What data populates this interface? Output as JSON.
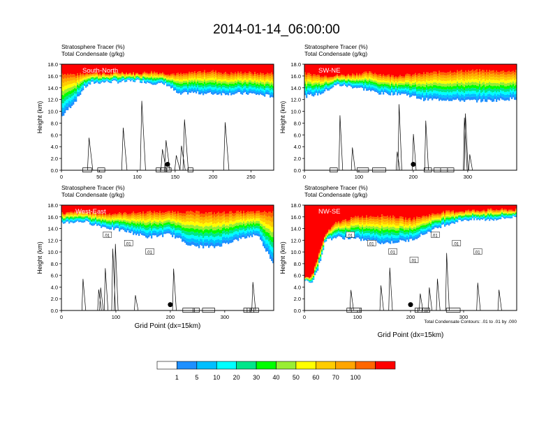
{
  "title": "2014-01-14_06:00:00",
  "field_labels": [
    "Stratosphere Tracer   (%)",
    "Total Condensate   (g/kg)"
  ],
  "ylabel": "Height (km)",
  "xlabel": "Grid Point (dx=15km)",
  "contour_note": "Total Condensate Contours: .01 to .01 by .000",
  "contour_label": ".01",
  "colors": {
    "levels": [
      "#ffffff",
      "#1e90ff",
      "#00bfff",
      "#00ffff",
      "#00e68a",
      "#00ff00",
      "#99ee33",
      "#ffff00",
      "#ffcc00",
      "#ffa500",
      "#ff6600",
      "#ff0000"
    ],
    "contour": "#000000",
    "marker": "#000000"
  },
  "colorbar": {
    "labels": [
      "1",
      "5",
      "10",
      "20",
      "30",
      "40",
      "50",
      "60",
      "70",
      "100"
    ]
  },
  "chart_data": [
    {
      "type": "heatmap",
      "panel": "South-North",
      "xlim": [
        0,
        280
      ],
      "ylim": [
        0,
        18
      ],
      "xticks": [
        0,
        50,
        100,
        150,
        200,
        250
      ],
      "yticks": [
        "0.0",
        "2.0",
        "4.0",
        "6.0",
        "8.0",
        "10.0",
        "12.0",
        "14.0",
        "16.0",
        "18.0"
      ],
      "contour_labels": [],
      "marker": {
        "x": 140,
        "y": 1.0
      },
      "tracer_100_base_km": [
        [
          0,
          16.4
        ],
        [
          20,
          16.2
        ],
        [
          40,
          16.6
        ],
        [
          60,
          16.3
        ],
        [
          80,
          16.6
        ],
        [
          100,
          16.4
        ],
        [
          120,
          16.7
        ],
        [
          140,
          16.4
        ],
        [
          160,
          16.3
        ],
        [
          180,
          16.7
        ],
        [
          200,
          16.8
        ],
        [
          220,
          16.4
        ],
        [
          240,
          16.6
        ],
        [
          260,
          16.4
        ],
        [
          280,
          16.4
        ]
      ],
      "tracer_1_base_km": [
        [
          0,
          9.0
        ],
        [
          10,
          10.5
        ],
        [
          20,
          12.0
        ],
        [
          30,
          14.0
        ],
        [
          40,
          14.8
        ],
        [
          60,
          15.0
        ],
        [
          80,
          15.0
        ],
        [
          100,
          15.2
        ],
        [
          120,
          14.8
        ],
        [
          140,
          14.5
        ],
        [
          155,
          12.8
        ],
        [
          170,
          13.2
        ],
        [
          190,
          13.0
        ],
        [
          220,
          13.0
        ],
        [
          250,
          13.0
        ],
        [
          280,
          12.5
        ]
      ]
    },
    {
      "type": "heatmap",
      "panel": "SW-NE",
      "xlim": [
        0,
        390
      ],
      "ylim": [
        0,
        18
      ],
      "xticks": [
        0,
        100,
        200,
        300
      ],
      "yticks": [
        "0.0",
        "2.0",
        "4.0",
        "6.0",
        "8.0",
        "10.0",
        "12.0",
        "14.0",
        "16.0",
        "18.0"
      ],
      "contour_labels": [],
      "marker": {
        "x": 200,
        "y": 1.0
      },
      "tracer_100_base_km": [
        [
          0,
          16.4
        ],
        [
          40,
          16.0
        ],
        [
          80,
          16.2
        ],
        [
          120,
          16.6
        ],
        [
          160,
          16.0
        ],
        [
          200,
          16.2
        ],
        [
          240,
          16.6
        ],
        [
          280,
          16.8
        ],
        [
          320,
          16.9
        ],
        [
          360,
          16.8
        ],
        [
          390,
          16.8
        ]
      ],
      "tracer_1_base_km": [
        [
          0,
          12.5
        ],
        [
          30,
          13.0
        ],
        [
          60,
          14.5
        ],
        [
          100,
          14.0
        ],
        [
          140,
          13.0
        ],
        [
          180,
          13.0
        ],
        [
          220,
          12.0
        ],
        [
          260,
          12.0
        ],
        [
          300,
          11.8
        ],
        [
          340,
          11.8
        ],
        [
          390,
          12.2
        ]
      ]
    },
    {
      "type": "heatmap",
      "panel": "West-East",
      "xlim": [
        0,
        390
      ],
      "ylim": [
        0,
        18
      ],
      "xticks": [
        0,
        100,
        200,
        300
      ],
      "yticks": [
        "0.0",
        "2.0",
        "4.0",
        "6.0",
        "8.0",
        "10.0",
        "12.0",
        "14.0",
        "16.0",
        "18.0"
      ],
      "contour_labels": [
        ".01",
        ".01",
        ".01"
      ],
      "marker": {
        "x": 200,
        "y": 1.0
      },
      "tracer_100_base_km": [
        [
          0,
          16.6
        ],
        [
          40,
          16.8
        ],
        [
          80,
          16.5
        ],
        [
          120,
          16.6
        ],
        [
          160,
          16.8
        ],
        [
          200,
          16.8
        ],
        [
          240,
          16.8
        ],
        [
          280,
          16.6
        ],
        [
          320,
          16.8
        ],
        [
          360,
          16.8
        ],
        [
          390,
          16.8
        ]
      ],
      "tracer_1_base_km": [
        [
          0,
          15.0
        ],
        [
          40,
          15.2
        ],
        [
          80,
          14.2
        ],
        [
          120,
          13.5
        ],
        [
          160,
          12.5
        ],
        [
          200,
          13.0
        ],
        [
          240,
          11.0
        ],
        [
          280,
          10.8
        ],
        [
          320,
          12.0
        ],
        [
          360,
          13.0
        ],
        [
          390,
          8.0
        ]
      ]
    },
    {
      "type": "heatmap",
      "panel": "NW-SE",
      "xlim": [
        0,
        400
      ],
      "ylim": [
        0,
        18
      ],
      "xticks": [
        0,
        100,
        200,
        300
      ],
      "yticks": [
        "0.0",
        "2.0",
        "4.0",
        "6.0",
        "8.0",
        "10.0",
        "12.0",
        "14.0",
        "16.0",
        "18.0"
      ],
      "contour_labels": [
        ".01",
        ".01",
        ".01",
        ".01",
        ".01",
        ".01",
        ".01"
      ],
      "marker": {
        "x": 200,
        "y": 1.0
      },
      "tracer_100_base_km": [
        [
          0,
          5.5
        ],
        [
          15,
          6.0
        ],
        [
          25,
          9.0
        ],
        [
          40,
          13.0
        ],
        [
          60,
          15.0
        ],
        [
          100,
          16.0
        ],
        [
          150,
          16.2
        ],
        [
          200,
          15.6
        ],
        [
          260,
          16.8
        ],
        [
          300,
          17.0
        ],
        [
          350,
          17.2
        ],
        [
          400,
          17.2
        ]
      ],
      "tracer_1_base_km": [
        [
          0,
          5.0
        ],
        [
          15,
          5.0
        ],
        [
          25,
          7.0
        ],
        [
          40,
          12.0
        ],
        [
          60,
          12.5
        ],
        [
          100,
          12.2
        ],
        [
          150,
          11.5
        ],
        [
          200,
          12.0
        ],
        [
          260,
          14.5
        ],
        [
          300,
          15.5
        ],
        [
          350,
          15.5
        ],
        [
          400,
          16.0
        ]
      ]
    }
  ]
}
